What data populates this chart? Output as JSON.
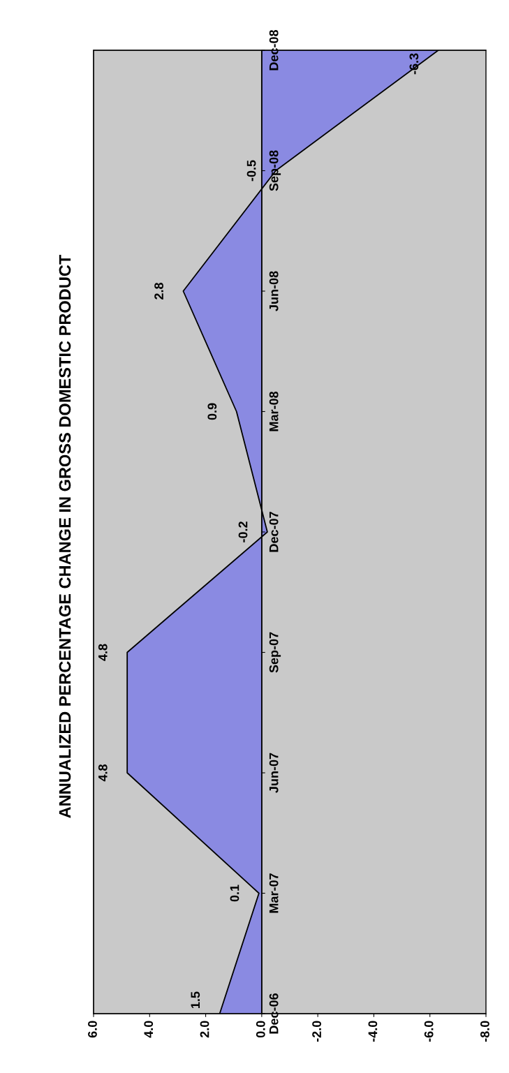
{
  "chart_data": {
    "type": "area",
    "orientation": "horizontal",
    "title": "ANNUALIZED PERCENTAGE CHANGE IN GROSS DOMESTIC PRODUCT",
    "categories": [
      "Dec-08",
      "Sep-08",
      "Jun-08",
      "Mar-08",
      "Dec-07",
      "Sep-07",
      "Jun-07",
      "Mar-07",
      "Dec-06"
    ],
    "values": [
      -6.3,
      -0.5,
      2.8,
      0.9,
      -0.2,
      4.8,
      4.8,
      0.1,
      1.5
    ],
    "color": "#8a8ae2",
    "xlim": [
      6,
      -8
    ],
    "xticks": [
      {
        "value": 6,
        "label": "6.0"
      },
      {
        "value": 4,
        "label": "4.0"
      },
      {
        "value": 2,
        "label": "2.0"
      },
      {
        "value": 0,
        "label": "0.0"
      },
      {
        "value": -2,
        "label": "-2.0"
      },
      {
        "value": -4,
        "label": "-4.0"
      },
      {
        "value": -6,
        "label": "-6.0"
      },
      {
        "value": -8,
        "label": "-8.0"
      }
    ],
    "data_labels": true
  }
}
